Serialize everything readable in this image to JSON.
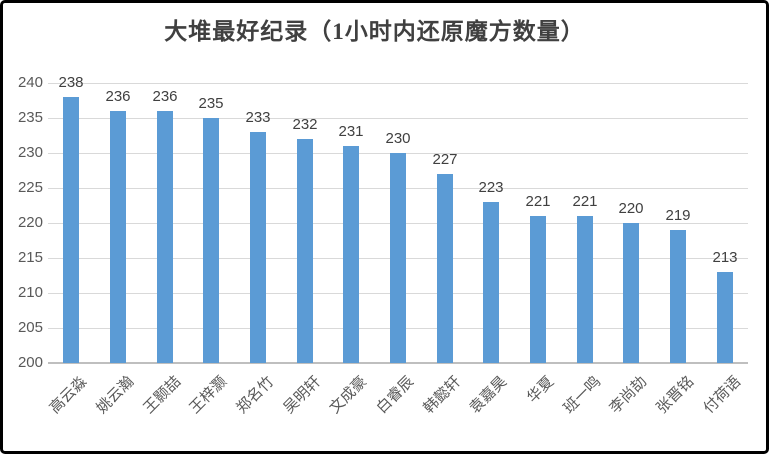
{
  "chart_data": {
    "type": "bar",
    "title": "大堆最好纪录（1小时内还原魔方数量）",
    "categories": [
      "高云淼",
      "姚云瀚",
      "王颢喆",
      "王梓灏",
      "郑名竹",
      "吴明轩",
      "文成豪",
      "白睿辰",
      "韩懿轩",
      "袁嘉昊",
      "华夏",
      "班一鸣",
      "李尚劼",
      "张晋铭",
      "付荷语"
    ],
    "values": [
      238,
      236,
      236,
      235,
      233,
      232,
      231,
      230,
      227,
      223,
      221,
      221,
      220,
      219,
      213
    ],
    "xlabel": "",
    "ylabel": "",
    "ylim": [
      200,
      240
    ],
    "yticks": [
      200,
      205,
      210,
      215,
      220,
      225,
      230,
      235,
      240
    ],
    "grid": true,
    "legend": false,
    "data_labels": true,
    "colors": {
      "bar": "#5B9BD5",
      "gridline": "#D9D9D9",
      "axis_line": "#BFBFBF",
      "value_label": "#404040",
      "tick_label": "#595959",
      "title": "#404040",
      "frame_border": "#000000",
      "background": "#FFFFFF"
    }
  }
}
